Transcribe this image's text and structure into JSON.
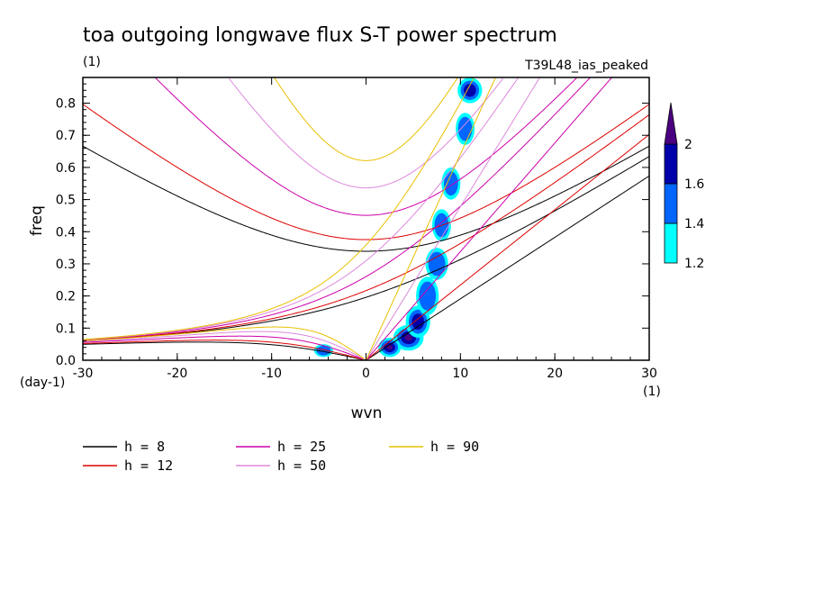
{
  "chart_data": {
    "type": "contour",
    "title": "toa outgoing longwave flux S-T power spectrum",
    "subtitle_left": "(1)",
    "subtitle_right": "T39L48_ias_peaked",
    "xlabel": "wvn",
    "ylabel": "freq",
    "x_unit": "(1)",
    "y_unit": "(day-1)",
    "xlim": [
      -30,
      30
    ],
    "ylim": [
      0,
      0.88
    ],
    "x_ticks": [
      -30,
      -20,
      -10,
      0,
      10,
      20,
      30
    ],
    "x_tick_labels": [
      "-30",
      "-20",
      "-10",
      "0",
      "10",
      "20",
      "30"
    ],
    "y_ticks": [
      0,
      0.1,
      0.2,
      0.3,
      0.4,
      0.5,
      0.6,
      0.7,
      0.8
    ],
    "y_tick_labels": [
      "0.0",
      "0.1",
      "0.2",
      "0.3",
      "0.4",
      "0.5",
      "0.6",
      "0.7",
      "0.8"
    ],
    "colorbar": {
      "levels": [
        1.2,
        1.4,
        1.6,
        2
      ],
      "labels": [
        "1.2",
        "1.4",
        "1.6",
        "2"
      ],
      "colors": [
        "#00ffff",
        "#0066ff",
        "#0000aa",
        "#4b0082"
      ]
    },
    "dispersion_series": [
      {
        "label": "h =  8",
        "h": 8,
        "color": "#000000"
      },
      {
        "label": "h = 12",
        "h": 12,
        "color": "#dd0000"
      },
      {
        "label": "h = 25",
        "h": 25,
        "color": "#cc00aa"
      },
      {
        "label": "h = 50",
        "h": 50,
        "color": "#dd88dd"
      },
      {
        "label": "h = 90",
        "h": 90,
        "color": "#e8c000"
      }
    ],
    "power_regions": [
      {
        "x": 4.5,
        "y": 0.07,
        "rx": 1.6,
        "ry": 0.04,
        "level": 2
      },
      {
        "x": 5.5,
        "y": 0.12,
        "rx": 1.3,
        "ry": 0.05,
        "level": 1.6
      },
      {
        "x": 6.5,
        "y": 0.2,
        "rx": 1.2,
        "ry": 0.06,
        "level": 1.4
      },
      {
        "x": 7.5,
        "y": 0.3,
        "rx": 1.2,
        "ry": 0.05,
        "level": 1.4
      },
      {
        "x": 8.0,
        "y": 0.42,
        "rx": 1.0,
        "ry": 0.05,
        "level": 1.4
      },
      {
        "x": 9.0,
        "y": 0.55,
        "rx": 1.0,
        "ry": 0.05,
        "level": 1.4
      },
      {
        "x": 10.5,
        "y": 0.72,
        "rx": 1.0,
        "ry": 0.05,
        "level": 1.4
      },
      {
        "x": 11.0,
        "y": 0.84,
        "rx": 1.3,
        "ry": 0.04,
        "level": 1.6
      },
      {
        "x": 2.5,
        "y": 0.04,
        "rx": 1.2,
        "ry": 0.03,
        "level": 2
      },
      {
        "x": -4.5,
        "y": 0.03,
        "rx": 1.0,
        "ry": 0.02,
        "level": 1.4
      }
    ],
    "grid": false
  }
}
